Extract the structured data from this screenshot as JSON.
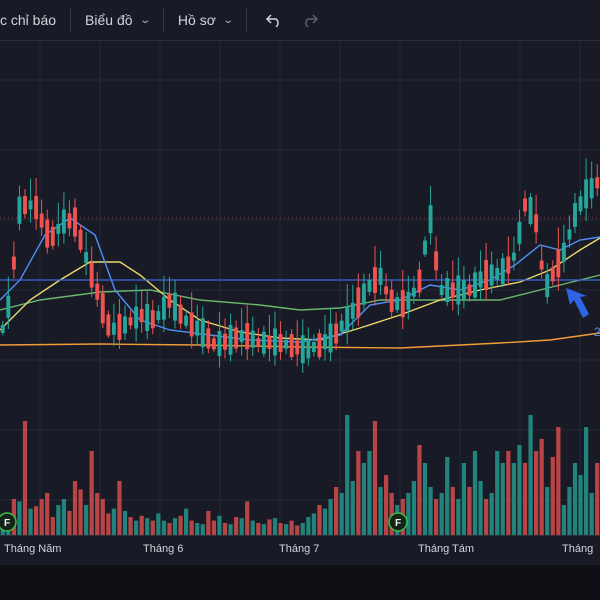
{
  "toolbar": {
    "indicators_label": "c chỉ báo",
    "chart_menu_label": "Biểu đồ",
    "profile_menu_label": "Hồ sơ",
    "undo_icon": "undo-icon",
    "redo_icon": "redo-icon"
  },
  "colors": {
    "background": "#181b26",
    "up_candle": "#26a69a",
    "down_candle": "#ef5350",
    "ma_blue": "#4f8ff7",
    "ma_yellow": "#ecd86b",
    "ma_green": "#6bb56d",
    "ma_orange": "#f39c38",
    "hline": "#3d68d8"
  },
  "axis": {
    "months": [
      "Tháng Năm",
      "Tháng 6",
      "Tháng 7",
      "Tháng Tám",
      "Tháng"
    ],
    "right_label_partial": "2"
  },
  "chart_data": {
    "type": "candlestick",
    "x_axis_labels": [
      "Tháng Năm",
      "Tháng 6",
      "Tháng 7",
      "Tháng Tám",
      "Tháng"
    ],
    "candles": [
      {
        "dir": "up",
        "vol": 12
      },
      {
        "dir": "up",
        "vol": 16
      },
      {
        "dir": "down",
        "vol": 30
      },
      {
        "dir": "up",
        "vol": 28
      },
      {
        "dir": "down",
        "vol": 95
      },
      {
        "dir": "up",
        "vol": 22
      },
      {
        "dir": "down",
        "vol": 24
      },
      {
        "dir": "down",
        "vol": 30
      },
      {
        "dir": "down",
        "vol": 35
      },
      {
        "dir": "down",
        "vol": 15
      },
      {
        "dir": "up",
        "vol": 25
      },
      {
        "dir": "up",
        "vol": 30
      },
      {
        "dir": "down",
        "vol": 20
      },
      {
        "dir": "down",
        "vol": 45
      },
      {
        "dir": "down",
        "vol": 38
      },
      {
        "dir": "up",
        "vol": 25
      },
      {
        "dir": "down",
        "vol": 70
      },
      {
        "dir": "down",
        "vol": 35
      },
      {
        "dir": "down",
        "vol": 30
      },
      {
        "dir": "down",
        "vol": 18
      },
      {
        "dir": "up",
        "vol": 22
      },
      {
        "dir": "down",
        "vol": 45
      },
      {
        "dir": "up",
        "vol": 20
      },
      {
        "dir": "down",
        "vol": 15
      },
      {
        "dir": "up",
        "vol": 12
      },
      {
        "dir": "down",
        "vol": 16
      },
      {
        "dir": "up",
        "vol": 14
      },
      {
        "dir": "down",
        "vol": 12
      },
      {
        "dir": "up",
        "vol": 18
      },
      {
        "dir": "up",
        "vol": 12
      },
      {
        "dir": "down",
        "vol": 10
      },
      {
        "dir": "up",
        "vol": 14
      },
      {
        "dir": "down",
        "vol": 16
      },
      {
        "dir": "up",
        "vol": 22
      },
      {
        "dir": "down",
        "vol": 12
      },
      {
        "dir": "up",
        "vol": 10
      },
      {
        "dir": "up",
        "vol": 9
      },
      {
        "dir": "down",
        "vol": 20
      },
      {
        "dir": "down",
        "vol": 12
      },
      {
        "dir": "up",
        "vol": 16
      },
      {
        "dir": "down",
        "vol": 10
      },
      {
        "dir": "up",
        "vol": 9
      },
      {
        "dir": "down",
        "vol": 15
      },
      {
        "dir": "up",
        "vol": 14
      },
      {
        "dir": "down",
        "vol": 28
      },
      {
        "dir": "up",
        "vol": 12
      },
      {
        "dir": "down",
        "vol": 10
      },
      {
        "dir": "up",
        "vol": 9
      },
      {
        "dir": "down",
        "vol": 13
      },
      {
        "dir": "up",
        "vol": 14
      },
      {
        "dir": "down",
        "vol": 10
      },
      {
        "dir": "up",
        "vol": 9
      },
      {
        "dir": "down",
        "vol": 12
      },
      {
        "dir": "down",
        "vol": 8
      },
      {
        "dir": "up",
        "vol": 10
      },
      {
        "dir": "up",
        "vol": 15
      },
      {
        "dir": "up",
        "vol": 18
      },
      {
        "dir": "down",
        "vol": 25
      },
      {
        "dir": "up",
        "vol": 22
      },
      {
        "dir": "up",
        "vol": 30
      },
      {
        "dir": "down",
        "vol": 40
      },
      {
        "dir": "up",
        "vol": 35
      },
      {
        "dir": "up",
        "vol": 100
      },
      {
        "dir": "up",
        "vol": 45
      },
      {
        "dir": "down",
        "vol": 70
      },
      {
        "dir": "up",
        "vol": 60
      },
      {
        "dir": "up",
        "vol": 70
      },
      {
        "dir": "down",
        "vol": 95
      },
      {
        "dir": "up",
        "vol": 40
      },
      {
        "dir": "down",
        "vol": 50
      },
      {
        "dir": "down",
        "vol": 35
      },
      {
        "dir": "up",
        "vol": 25
      },
      {
        "dir": "down",
        "vol": 30
      },
      {
        "dir": "up",
        "vol": 35
      },
      {
        "dir": "up",
        "vol": 45
      },
      {
        "dir": "down",
        "vol": 75
      },
      {
        "dir": "up",
        "vol": 60
      },
      {
        "dir": "up",
        "vol": 40
      },
      {
        "dir": "down",
        "vol": 30
      },
      {
        "dir": "up",
        "vol": 35
      },
      {
        "dir": "up",
        "vol": 65
      },
      {
        "dir": "down",
        "vol": 40
      },
      {
        "dir": "up",
        "vol": 30
      },
      {
        "dir": "up",
        "vol": 60
      },
      {
        "dir": "down",
        "vol": 40
      },
      {
        "dir": "up",
        "vol": 70
      },
      {
        "dir": "up",
        "vol": 45
      },
      {
        "dir": "down",
        "vol": 30
      },
      {
        "dir": "up",
        "vol": 35
      },
      {
        "dir": "up",
        "vol": 70
      },
      {
        "dir": "up",
        "vol": 60
      },
      {
        "dir": "down",
        "vol": 70
      },
      {
        "dir": "up",
        "vol": 60
      },
      {
        "dir": "up",
        "vol": 75
      },
      {
        "dir": "down",
        "vol": 60
      },
      {
        "dir": "up",
        "vol": 100
      },
      {
        "dir": "down",
        "vol": 70
      },
      {
        "dir": "down",
        "vol": 80
      },
      {
        "dir": "up",
        "vol": 40
      },
      {
        "dir": "down",
        "vol": 65
      },
      {
        "dir": "down",
        "vol": 90
      },
      {
        "dir": "up",
        "vol": 25
      },
      {
        "dir": "up",
        "vol": 40
      },
      {
        "dir": "up",
        "vol": 60
      },
      {
        "dir": "up",
        "vol": 50
      },
      {
        "dir": "up",
        "vol": 90
      },
      {
        "dir": "up",
        "vol": 35
      },
      {
        "dir": "down",
        "vol": 60
      }
    ],
    "horizontal_lines": [
      "solid blue level",
      "dotted red level"
    ],
    "moving_averages": [
      "blue",
      "yellow",
      "green",
      "orange"
    ],
    "markers": [
      "F",
      "F"
    ]
  }
}
